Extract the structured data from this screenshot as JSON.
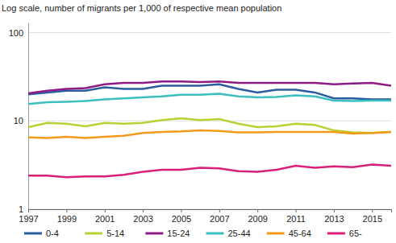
{
  "chart_data": {
    "type": "line",
    "title": "Log scale, number of migrants per 1,000 of respective mean population",
    "log": "y",
    "grid": true,
    "legend": "bottom",
    "x": [
      1997,
      1998,
      1999,
      2000,
      2001,
      2002,
      2003,
      2004,
      2005,
      2006,
      2007,
      2008,
      2009,
      2010,
      2011,
      2012,
      2013,
      2014,
      2015,
      2016
    ],
    "xlim": [
      1997,
      2016
    ],
    "xticks": [
      1997,
      1999,
      2001,
      2003,
      2005,
      2007,
      2009,
      2011,
      2013,
      2015
    ],
    "ylim": [
      1,
      130
    ],
    "yticks": [
      1,
      10,
      100
    ],
    "series": [
      {
        "name": "0-4",
        "color": "#2a5d9f",
        "values": [
          20,
          21,
          22,
          22,
          24,
          23,
          23,
          25,
          25,
          25,
          26,
          23,
          21,
          22.5,
          22.5,
          21,
          18,
          18,
          17.5,
          17.5
        ]
      },
      {
        "name": "5-14",
        "color": "#b5d333",
        "values": [
          8.5,
          9.5,
          9.3,
          8.7,
          9.5,
          9.3,
          9.5,
          10.2,
          10.7,
          10.2,
          10.5,
          9.3,
          8.5,
          8.7,
          9.3,
          9.0,
          7.8,
          7.4,
          7.3,
          7.5
        ]
      },
      {
        "name": "15-24",
        "color": "#8e1a83",
        "values": [
          20.5,
          22,
          23,
          23.5,
          26,
          27,
          27,
          28,
          28,
          27.5,
          28,
          27,
          27,
          27,
          27,
          27,
          26,
          26.5,
          27,
          25
        ]
      },
      {
        "name": "25-44",
        "color": "#3bbfc0",
        "values": [
          15.5,
          16.3,
          16.5,
          16.8,
          17.5,
          18,
          18.5,
          19,
          19.8,
          19.8,
          20.3,
          19,
          18.5,
          18.7,
          19.5,
          19,
          17,
          16.8,
          17,
          17
        ]
      },
      {
        "name": "45-64",
        "color": "#f39a1a",
        "values": [
          6.5,
          6.4,
          6.6,
          6.4,
          6.6,
          6.8,
          7.3,
          7.5,
          7.6,
          7.8,
          7.7,
          7.4,
          7.4,
          7.5,
          7.5,
          7.5,
          7.5,
          7.2,
          7.3,
          7.5
        ]
      },
      {
        "name": "65-",
        "color": "#d91f78",
        "values": [
          2.4,
          2.4,
          2.3,
          2.35,
          2.35,
          2.45,
          2.65,
          2.8,
          2.8,
          2.95,
          2.9,
          2.7,
          2.65,
          2.8,
          3.1,
          2.95,
          3.05,
          3.0,
          3.2,
          3.1
        ]
      }
    ]
  }
}
